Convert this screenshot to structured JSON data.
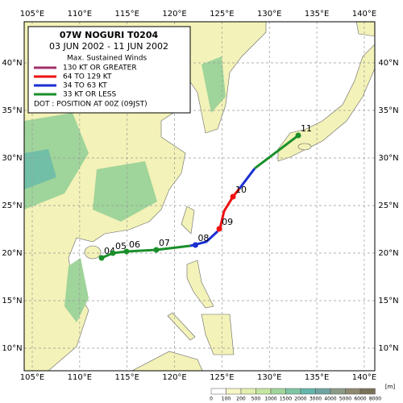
{
  "title": "07W  NOGURI  T0204",
  "dates": "03 JUN 2002 - 11 JUN 2002",
  "legend": {
    "heading": "Max. Sustained Winds",
    "items": [
      {
        "label": "130 KT OR GREATER",
        "color": "#a0306a"
      },
      {
        "label": "64 TO 129 KT",
        "color": "#ee1111"
      },
      {
        "label": "34 TO 63 KT",
        "color": "#1a2fd0"
      },
      {
        "label": "33 KT OR LESS",
        "color": "#1a8f2a"
      }
    ],
    "dot_note": "DOT : POSITION AT 00Z (09JST)"
  },
  "track": {
    "segments": [
      {
        "color": "#1a8f2a",
        "points": [
          [
            112.31,
            19.49
          ],
          [
            113.5,
            20.0
          ],
          [
            114.94,
            20.17
          ],
          [
            118.08,
            20.34
          ],
          [
            121.65,
            20.76
          ]
        ]
      },
      {
        "color": "#1a2fd0",
        "points": [
          [
            121.65,
            20.76
          ],
          [
            123.35,
            21.19
          ],
          [
            124.54,
            22.29
          ]
        ]
      },
      {
        "color": "#ee1111",
        "points": [
          [
            124.54,
            22.29
          ],
          [
            124.8,
            22.63
          ],
          [
            125.22,
            24.41
          ],
          [
            126.16,
            25.93
          ],
          [
            126.84,
            26.78
          ]
        ]
      },
      {
        "color": "#1a2fd0",
        "points": [
          [
            126.84,
            26.78
          ],
          [
            128.45,
            28.9
          ]
        ]
      },
      {
        "color": "#1a8f2a",
        "points": [
          [
            128.45,
            28.9
          ],
          [
            133.04,
            32.37
          ]
        ]
      }
    ],
    "daily_positions": [
      {
        "label": "04",
        "lon": 112.31,
        "lat": 19.49,
        "color": "#1a8f2a"
      },
      {
        "label": "05",
        "lon": 113.5,
        "lat": 20.0,
        "color": "#1a8f2a"
      },
      {
        "label": "06",
        "lon": 114.94,
        "lat": 20.17,
        "color": "#1a8f2a"
      },
      {
        "label": "07",
        "lon": 118.08,
        "lat": 20.34,
        "color": "#1a8f2a"
      },
      {
        "label": "08",
        "lon": 122.2,
        "lat": 20.85,
        "color": "#1a2fd0"
      },
      {
        "label": "09",
        "lon": 124.72,
        "lat": 22.55,
        "color": "#ee1111"
      },
      {
        "label": "10",
        "lon": 126.16,
        "lat": 25.93,
        "color": "#ee1111"
      },
      {
        "label": "11",
        "lon": 133.04,
        "lat": 32.37,
        "color": "#1a8f2a"
      }
    ]
  },
  "axes": {
    "lon_ticks": [
      {
        "value": 105,
        "label": "105°E"
      },
      {
        "value": 110,
        "label": "110°E"
      },
      {
        "value": 115,
        "label": "115°E"
      },
      {
        "value": 120,
        "label": "120°E"
      },
      {
        "value": 125,
        "label": "125°E"
      },
      {
        "value": 130,
        "label": "130°E"
      },
      {
        "value": 135,
        "label": "135°E"
      },
      {
        "value": 140,
        "label": "140°E"
      }
    ],
    "lat_ticks": [
      {
        "value": 10,
        "label": "10°N"
      },
      {
        "value": 15,
        "label": "15°N"
      },
      {
        "value": 20,
        "label": "20°N"
      },
      {
        "value": 25,
        "label": "25°N"
      },
      {
        "value": 30,
        "label": "30°N"
      },
      {
        "value": 35,
        "label": "35°N"
      },
      {
        "value": 40,
        "label": "40°N"
      }
    ]
  },
  "color_scale": {
    "levels": [
      0,
      100,
      200,
      500,
      1000,
      1500,
      2000,
      3000,
      4000,
      5000,
      6000,
      8000
    ],
    "colors": [
      "#ffffff",
      "#f7f6c6",
      "#e2f0b0",
      "#c4e6a0",
      "#9fd49a",
      "#7ec6a4",
      "#63b5ac",
      "#6fa3a0",
      "#8a9a86",
      "#8e8a70",
      "#7a7258"
    ],
    "unit": "[m]"
  }
}
